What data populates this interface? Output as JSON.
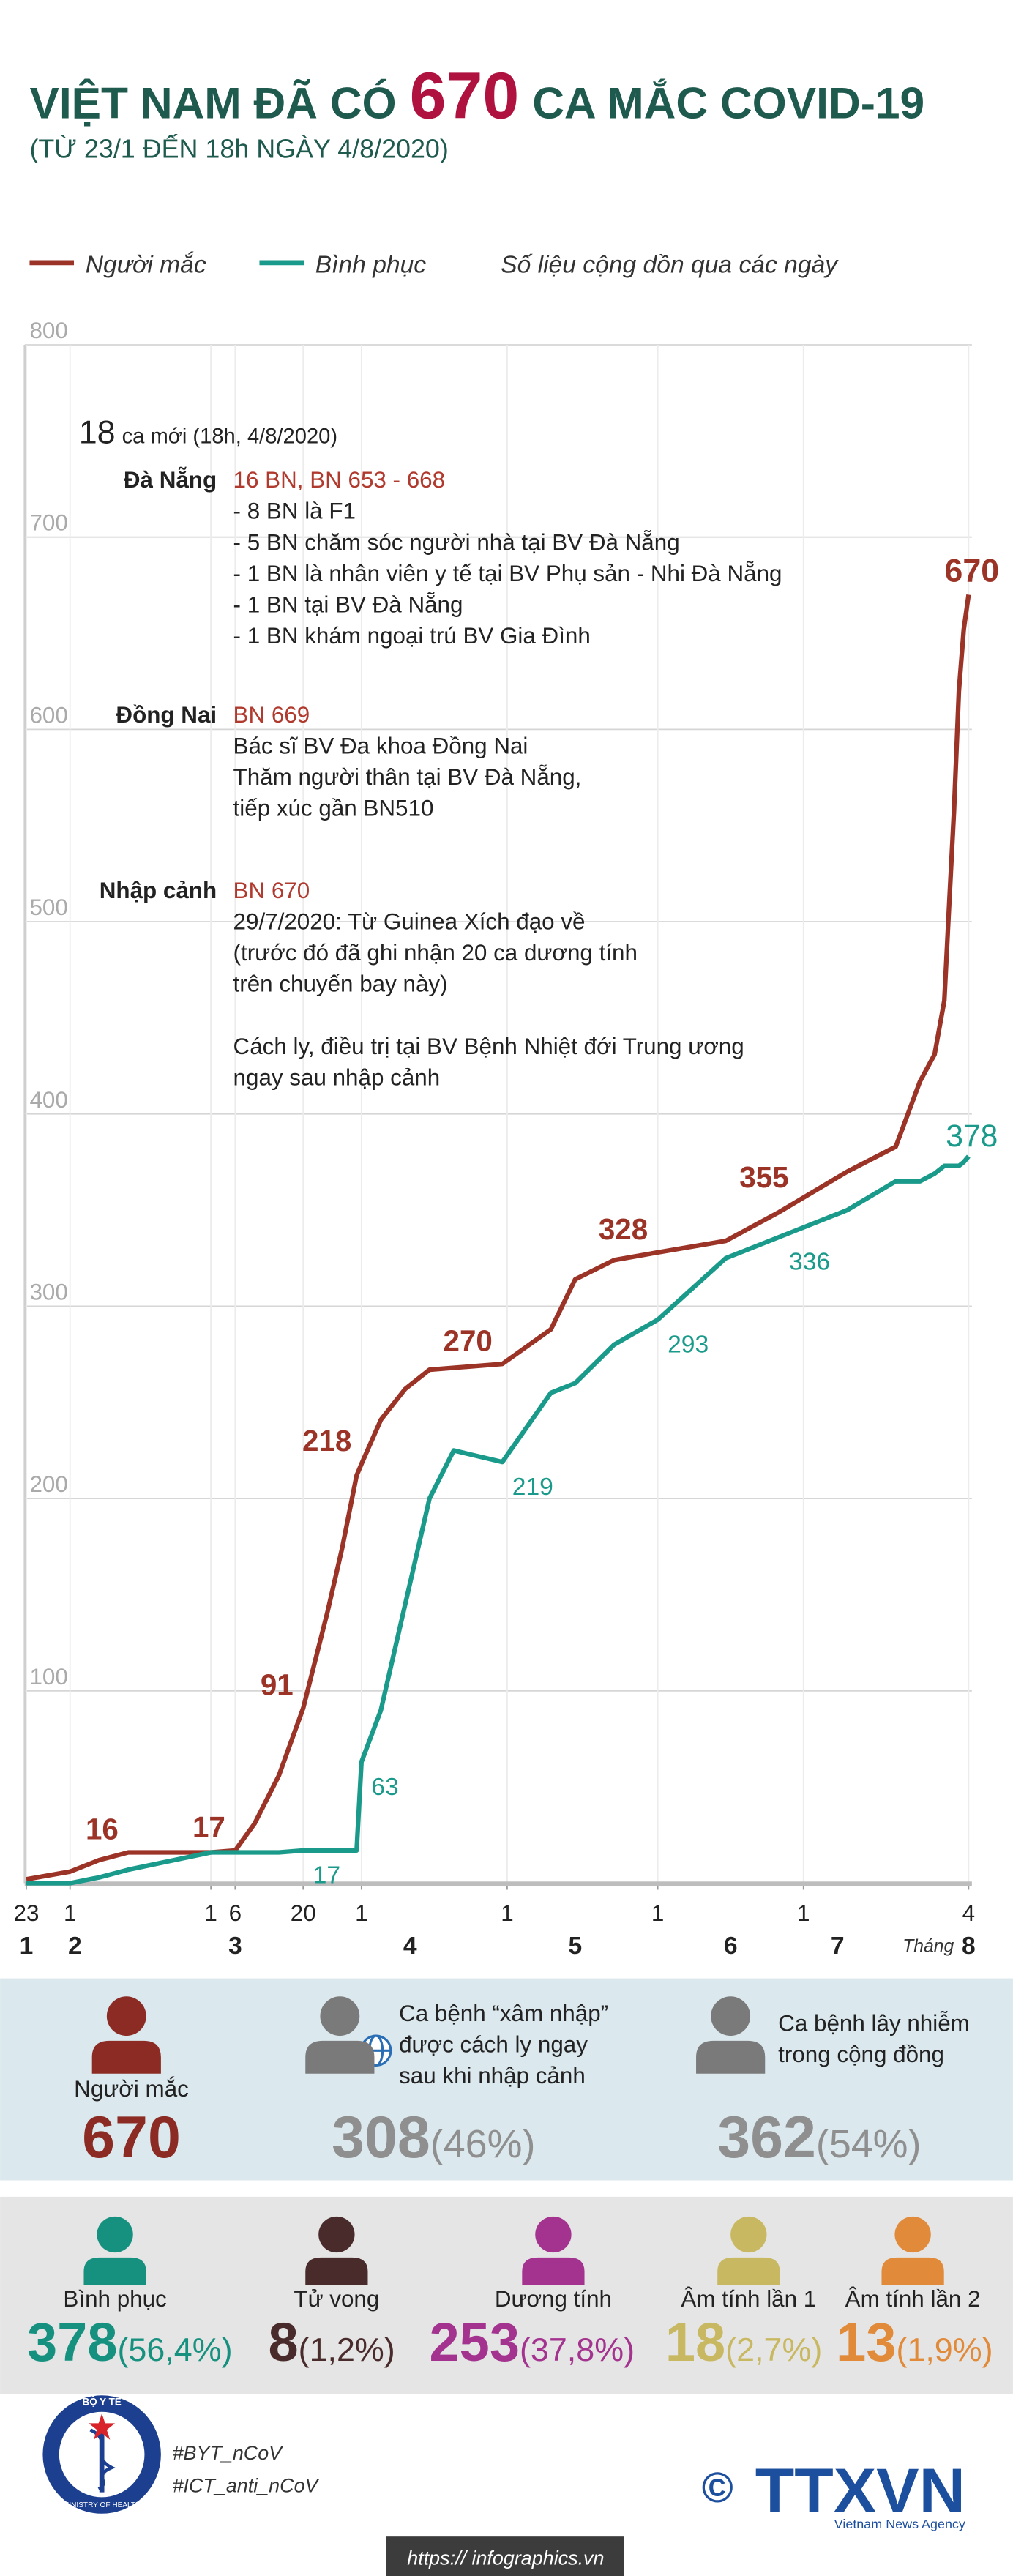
{
  "title": {
    "prefix": "VIỆT NAM ĐÃ CÓ",
    "number": 670,
    "suffix": "CA MẮC COVID-19"
  },
  "subtitle": "(TỪ 23/1 ĐẾN 18h NGÀY 4/8/2020)",
  "legend_note": "Số liệu cộng dồn qua các ngày",
  "chart_data": {
    "type": "line",
    "x": [
      "01-23",
      "02-01",
      "02-07",
      "02-13",
      "03-01",
      "03-06",
      "03-10",
      "03-15",
      "03-20",
      "03-25",
      "03-28",
      "03-31",
      "04-01",
      "04-05",
      "04-10",
      "04-15",
      "04-20",
      "04-30",
      "05-10",
      "05-15",
      "05-23",
      "06-01",
      "06-15",
      "06-26",
      "06-30",
      "07-10",
      "07-20",
      "07-25",
      "07-28",
      "07-30",
      "07-31",
      "08-01",
      "08-02",
      "08-03",
      "08-04"
    ],
    "series": [
      {
        "name": "Người mắc",
        "color": "#9b3327",
        "values": [
          2,
          6,
          12,
          16,
          16,
          17,
          31,
          56,
          91,
          141,
          174,
          212,
          218,
          241,
          257,
          267,
          268,
          270,
          288,
          314,
          324,
          328,
          334,
          349,
          355,
          370,
          383,
          417,
          431,
          459,
          509,
          558,
          620,
          652,
          670
        ],
        "value_labels": [
          null,
          null,
          null,
          "16",
          null,
          "17",
          null,
          null,
          "91",
          null,
          null,
          null,
          "218",
          null,
          null,
          null,
          null,
          "270",
          null,
          null,
          null,
          "328",
          null,
          null,
          "355",
          null,
          null,
          null,
          null,
          null,
          null,
          null,
          null,
          null,
          "670"
        ]
      },
      {
        "name": "Bình phục",
        "color": "#1a9a8a",
        "values": [
          0,
          0,
          3,
          7,
          16,
          16,
          16,
          16,
          17,
          17,
          17,
          17,
          63,
          90,
          145,
          200,
          225,
          219,
          255,
          260,
          280,
          293,
          325,
          336,
          340,
          350,
          365,
          365,
          369,
          373,
          373,
          373,
          373,
          375,
          378
        ],
        "value_labels": [
          null,
          null,
          null,
          null,
          null,
          null,
          null,
          null,
          "17",
          null,
          null,
          null,
          "63",
          null,
          null,
          null,
          null,
          "219",
          null,
          null,
          null,
          "293",
          null,
          "336",
          null,
          null,
          null,
          null,
          null,
          null,
          null,
          null,
          null,
          null,
          "378"
        ]
      }
    ],
    "xlim": [
      "01-23",
      "08-04"
    ],
    "xticks": [
      {
        "value": "01-23",
        "label": "23"
      },
      {
        "value": "02-01",
        "label": "1"
      },
      {
        "value": "03-01",
        "label": "1"
      },
      {
        "value": "03-06",
        "label": "6"
      },
      {
        "value": "03-20",
        "label": "20"
      },
      {
        "value": "04-01",
        "label": "1"
      },
      {
        "value": "05-01",
        "label": "1"
      },
      {
        "value": "06-01",
        "label": "1"
      },
      {
        "value": "07-01",
        "label": "1"
      },
      {
        "value": "08-04",
        "label": "4"
      }
    ],
    "month_labels": [
      {
        "value": "01-23",
        "label": "1"
      },
      {
        "value": "02-02",
        "label": "2"
      },
      {
        "value": "03-06",
        "label": "3"
      },
      {
        "value": "04-11",
        "label": "4"
      },
      {
        "value": "05-15",
        "label": "5"
      },
      {
        "value": "06-16",
        "label": "6"
      },
      {
        "value": "07-08",
        "label": "7"
      },
      {
        "value": "08-04",
        "label": "8"
      }
    ],
    "month_prefix": "Tháng",
    "ylim": [
      0,
      800
    ],
    "yticks": [
      100,
      200,
      300,
      400,
      500,
      600,
      700,
      800
    ],
    "grid": true
  },
  "notes": {
    "count": 18,
    "count_text": "ca mới (18h, 4/8/2020)",
    "groups": [
      {
        "place": "Đà Nẵng",
        "ids": "16 BN, BN 653 - 668",
        "lines": [
          "- 8 BN là F1",
          "- 5 BN chăm sóc người nhà tại BV Đà Nẵng",
          "- 1 BN là nhân viên y tế tại BV Phụ sản - Nhi Đà Nẵng",
          "- 1 BN tại BV Đà Nẵng",
          "- 1 BN khám ngoại trú BV Gia Đình"
        ]
      },
      {
        "place": "Đồng Nai",
        "ids": "BN 669",
        "lines": [
          "Bác sĩ BV Đa khoa Đồng Nai",
          "Thăm người thân tại BV Đà Nẵng,",
          "tiếp xúc gần BN510"
        ]
      },
      {
        "place": "Nhập cảnh",
        "ids": "BN 670",
        "lines": [
          "29/7/2020: Từ Guinea Xích đạo về",
          "(trước đó đã ghi nhận 20 ca dương tính",
          "trên chuyến bay này)"
        ],
        "after": [
          "Cách ly, điều trị tại BV Bệnh Nhiệt đới Trung ương",
          "ngay sau nhập cảnh"
        ]
      }
    ]
  },
  "summary": [
    {
      "label": [
        "Người mắc"
      ],
      "value": 670,
      "color": "#8b2b23"
    },
    {
      "label": [
        "Ca bệnh “xâm nhập”",
        "được cách ly ngay",
        "sau khi nhập cảnh"
      ],
      "value": 308,
      "share": "(46%)",
      "color": "#8f8f8f"
    },
    {
      "label": [
        "Ca bệnh lây nhiễm",
        "trong cộng đồng"
      ],
      "value": 362,
      "share": "(54%)",
      "color": "#8f8f8f"
    }
  ],
  "outcomes": [
    {
      "label": "Bình phục",
      "value": 378,
      "share": "(56,4%)",
      "color": "#17917f"
    },
    {
      "label": "Tử vong",
      "value": 8,
      "share": "(1,2%)",
      "color": "#4a2b2b"
    },
    {
      "label": "Dương tính",
      "value": 253,
      "share": "(37,8%)",
      "color": "#a3338f"
    },
    {
      "label": "Âm tính lần 1",
      "value": 18,
      "share": "(2,7%)",
      "color": "#c9b862"
    },
    {
      "label": "Âm tính lần 2",
      "value": 13,
      "share": "(1,9%)",
      "color": "#e08a3a"
    }
  ],
  "footer": {
    "logo_top": "BỘ Y TẾ",
    "logo_bottom": "MINISTRY OF HEALTH",
    "hashtags": [
      "#BYT_nCoV",
      "#ICT_anti_nCoV"
    ],
    "copyright": "©",
    "agency": "TTXVN",
    "agency_sub": "Vietnam News Agency",
    "url": "https:// infographics.vn"
  }
}
